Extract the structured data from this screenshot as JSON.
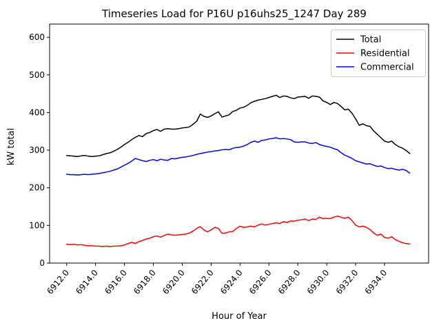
{
  "figure": {
    "background": "#ffffff"
  },
  "chart_data": {
    "type": "line",
    "title": "Timeseries Load for P16U p16uhs25_1247  Day 289",
    "xlabel": "Hour of Year",
    "ylabel": "kW total",
    "grid": false,
    "xlim": [
      6910.82,
      6937.05
    ],
    "ylim": [
      0,
      635
    ],
    "xticks": [
      6912,
      6914,
      6916,
      6918,
      6920,
      6922,
      6924,
      6926,
      6928,
      6930,
      6932,
      6934
    ],
    "xtick_labels": [
      "6912.0",
      "6914.0",
      "6916.0",
      "6918.0",
      "6920.0",
      "6922.0",
      "6924.0",
      "6926.0",
      "6928.0",
      "6930.0",
      "6932.0",
      "6934.0"
    ],
    "yticks": [
      0,
      100,
      200,
      300,
      400,
      500,
      600
    ],
    "ytick_labels": [
      "0",
      "100",
      "200",
      "300",
      "400",
      "500",
      "600"
    ],
    "legend": {
      "position": "upper right",
      "entries": [
        {
          "label": "Total",
          "color": "#000000"
        },
        {
          "label": "Residential",
          "color": "#ff0000"
        },
        {
          "label": "Commercial",
          "color": "#0000ff"
        }
      ]
    },
    "x": [
      6912.0,
      6912.25,
      6912.5,
      6912.75,
      6913.0,
      6913.25,
      6913.5,
      6913.75,
      6914.0,
      6914.25,
      6914.5,
      6914.75,
      6915.0,
      6915.25,
      6915.5,
      6915.75,
      6916.0,
      6916.25,
      6916.5,
      6916.75,
      6917.0,
      6917.25,
      6917.5,
      6917.75,
      6918.0,
      6918.25,
      6918.5,
      6918.75,
      6919.0,
      6919.25,
      6919.5,
      6919.75,
      6920.0,
      6920.25,
      6920.5,
      6920.75,
      6921.0,
      6921.25,
      6921.5,
      6921.75,
      6922.0,
      6922.25,
      6922.5,
      6922.75,
      6923.0,
      6923.25,
      6923.5,
      6923.75,
      6924.0,
      6924.25,
      6924.5,
      6924.75,
      6925.0,
      6925.25,
      6925.5,
      6925.75,
      6926.0,
      6926.25,
      6926.5,
      6926.75,
      6927.0,
      6927.25,
      6927.5,
      6927.75,
      6928.0,
      6928.25,
      6928.5,
      6928.75,
      6929.0,
      6929.25,
      6929.5,
      6929.75,
      6930.0,
      6930.25,
      6930.5,
      6930.75,
      6931.0,
      6931.25,
      6931.5,
      6931.75,
      6932.0,
      6932.25,
      6932.5,
      6932.75,
      6933.0,
      6933.25,
      6933.5,
      6933.75,
      6934.0,
      6934.25,
      6934.5,
      6934.75,
      6935.0,
      6935.25,
      6935.5,
      6935.75
    ],
    "series": [
      {
        "name": "Total",
        "color": "#000000",
        "values": [
          286,
          285,
          284,
          283,
          285,
          286,
          284,
          283,
          284,
          285,
          288,
          291,
          293,
          297,
          302,
          308,
          315,
          321,
          328,
          334,
          339,
          336,
          344,
          347,
          352,
          355,
          350,
          356,
          357,
          356,
          356,
          357,
          359,
          360,
          362,
          369,
          377,
          396,
          390,
          387,
          391,
          397,
          402,
          388,
          391,
          394,
          403,
          406,
          412,
          414,
          419,
          426,
          430,
          433,
          435,
          437,
          440,
          443,
          446,
          440,
          444,
          443,
          439,
          437,
          441,
          442,
          443,
          438,
          444,
          443,
          441,
          431,
          427,
          421,
          427,
          424,
          416,
          407,
          409,
          398,
          383,
          366,
          370,
          365,
          363,
          351,
          342,
          333,
          324,
          321,
          324,
          315,
          309,
          305,
          299,
          291
        ]
      },
      {
        "name": "Residential",
        "color": "#ff0000",
        "values": [
          50,
          49,
          50,
          48,
          49,
          47,
          46,
          46,
          45,
          45,
          44,
          45,
          44,
          45,
          45,
          46,
          48,
          52,
          55,
          52,
          57,
          60,
          64,
          66,
          70,
          72,
          69,
          73,
          77,
          75,
          74,
          75,
          76,
          77,
          80,
          85,
          92,
          97,
          88,
          83,
          88,
          95,
          92,
          79,
          80,
          83,
          84,
          92,
          98,
          95,
          96,
          98,
          96,
          101,
          104,
          101,
          103,
          105,
          107,
          105,
          110,
          108,
          112,
          111,
          114,
          115,
          117,
          113,
          117,
          116,
          122,
          118,
          119,
          118,
          122,
          125,
          122,
          119,
          122,
          113,
          101,
          96,
          98,
          95,
          89,
          80,
          74,
          77,
          68,
          66,
          70,
          62,
          58,
          54,
          52,
          51
        ]
      },
      {
        "name": "Commercial",
        "color": "#0000ff",
        "values": [
          236,
          235,
          235,
          234,
          235,
          236,
          235,
          236,
          237,
          238,
          240,
          242,
          244,
          247,
          250,
          255,
          260,
          265,
          271,
          278,
          275,
          272,
          270,
          273,
          275,
          272,
          276,
          274,
          273,
          278,
          277,
          279,
          281,
          282,
          284,
          286,
          289,
          291,
          293,
          295,
          296,
          298,
          299,
          301,
          302,
          301,
          305,
          307,
          308,
          311,
          315,
          321,
          324,
          321,
          326,
          327,
          330,
          331,
          333,
          330,
          331,
          330,
          328,
          322,
          321,
          322,
          322,
          319,
          318,
          320,
          315,
          312,
          310,
          308,
          304,
          301,
          293,
          287,
          283,
          278,
          272,
          269,
          266,
          263,
          264,
          260,
          257,
          258,
          254,
          251,
          252,
          249,
          247,
          249,
          246,
          239
        ]
      }
    ]
  }
}
